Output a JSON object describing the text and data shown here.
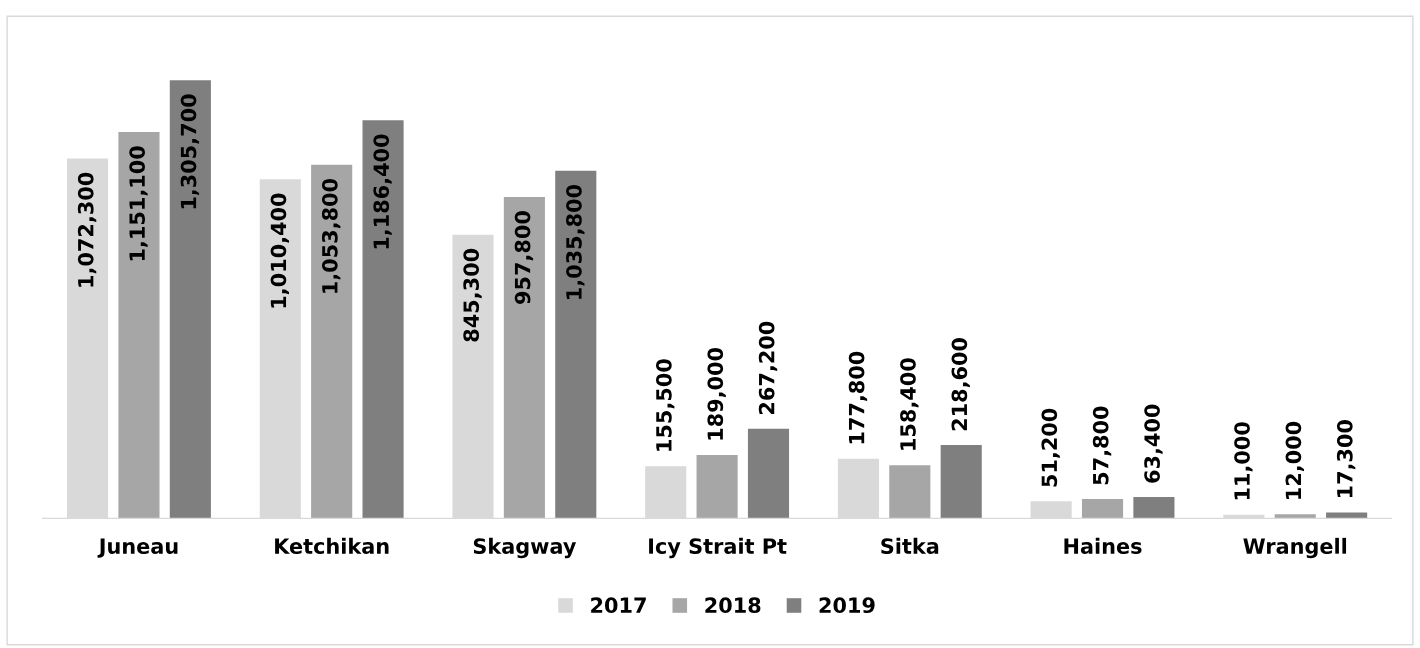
{
  "chart_data": {
    "type": "bar",
    "categories": [
      "Juneau",
      "Ketchikan",
      "Skagway",
      "Icy Strait Pt",
      "Sitka",
      "Haines",
      "Wrangell"
    ],
    "series": [
      {
        "name": "2017",
        "color": "#d9d9d9",
        "values": [
          1072300,
          1010400,
          845300,
          155500,
          177800,
          51200,
          11000
        ],
        "value_labels": [
          "1,072,300",
          "1,010,400",
          "845,300",
          "155,500",
          "177,800",
          "51,200",
          "11,000"
        ]
      },
      {
        "name": "2018",
        "color": "#a6a6a6",
        "values": [
          1151100,
          1053800,
          957800,
          189000,
          158400,
          57800,
          12000
        ],
        "value_labels": [
          "1,151,100",
          "1,053,800",
          "957,800",
          "189,000",
          "158,400",
          "57,800",
          "12,000"
        ]
      },
      {
        "name": "2019",
        "color": "#7f7f7f",
        "values": [
          1305700,
          1186400,
          1035800,
          267200,
          218600,
          63400,
          17300
        ],
        "value_labels": [
          "1,305,700",
          "1,186,400",
          "1,035,800",
          "267,200",
          "218,600",
          "63,400",
          "17,300"
        ]
      }
    ],
    "legend": "bottom"
  }
}
